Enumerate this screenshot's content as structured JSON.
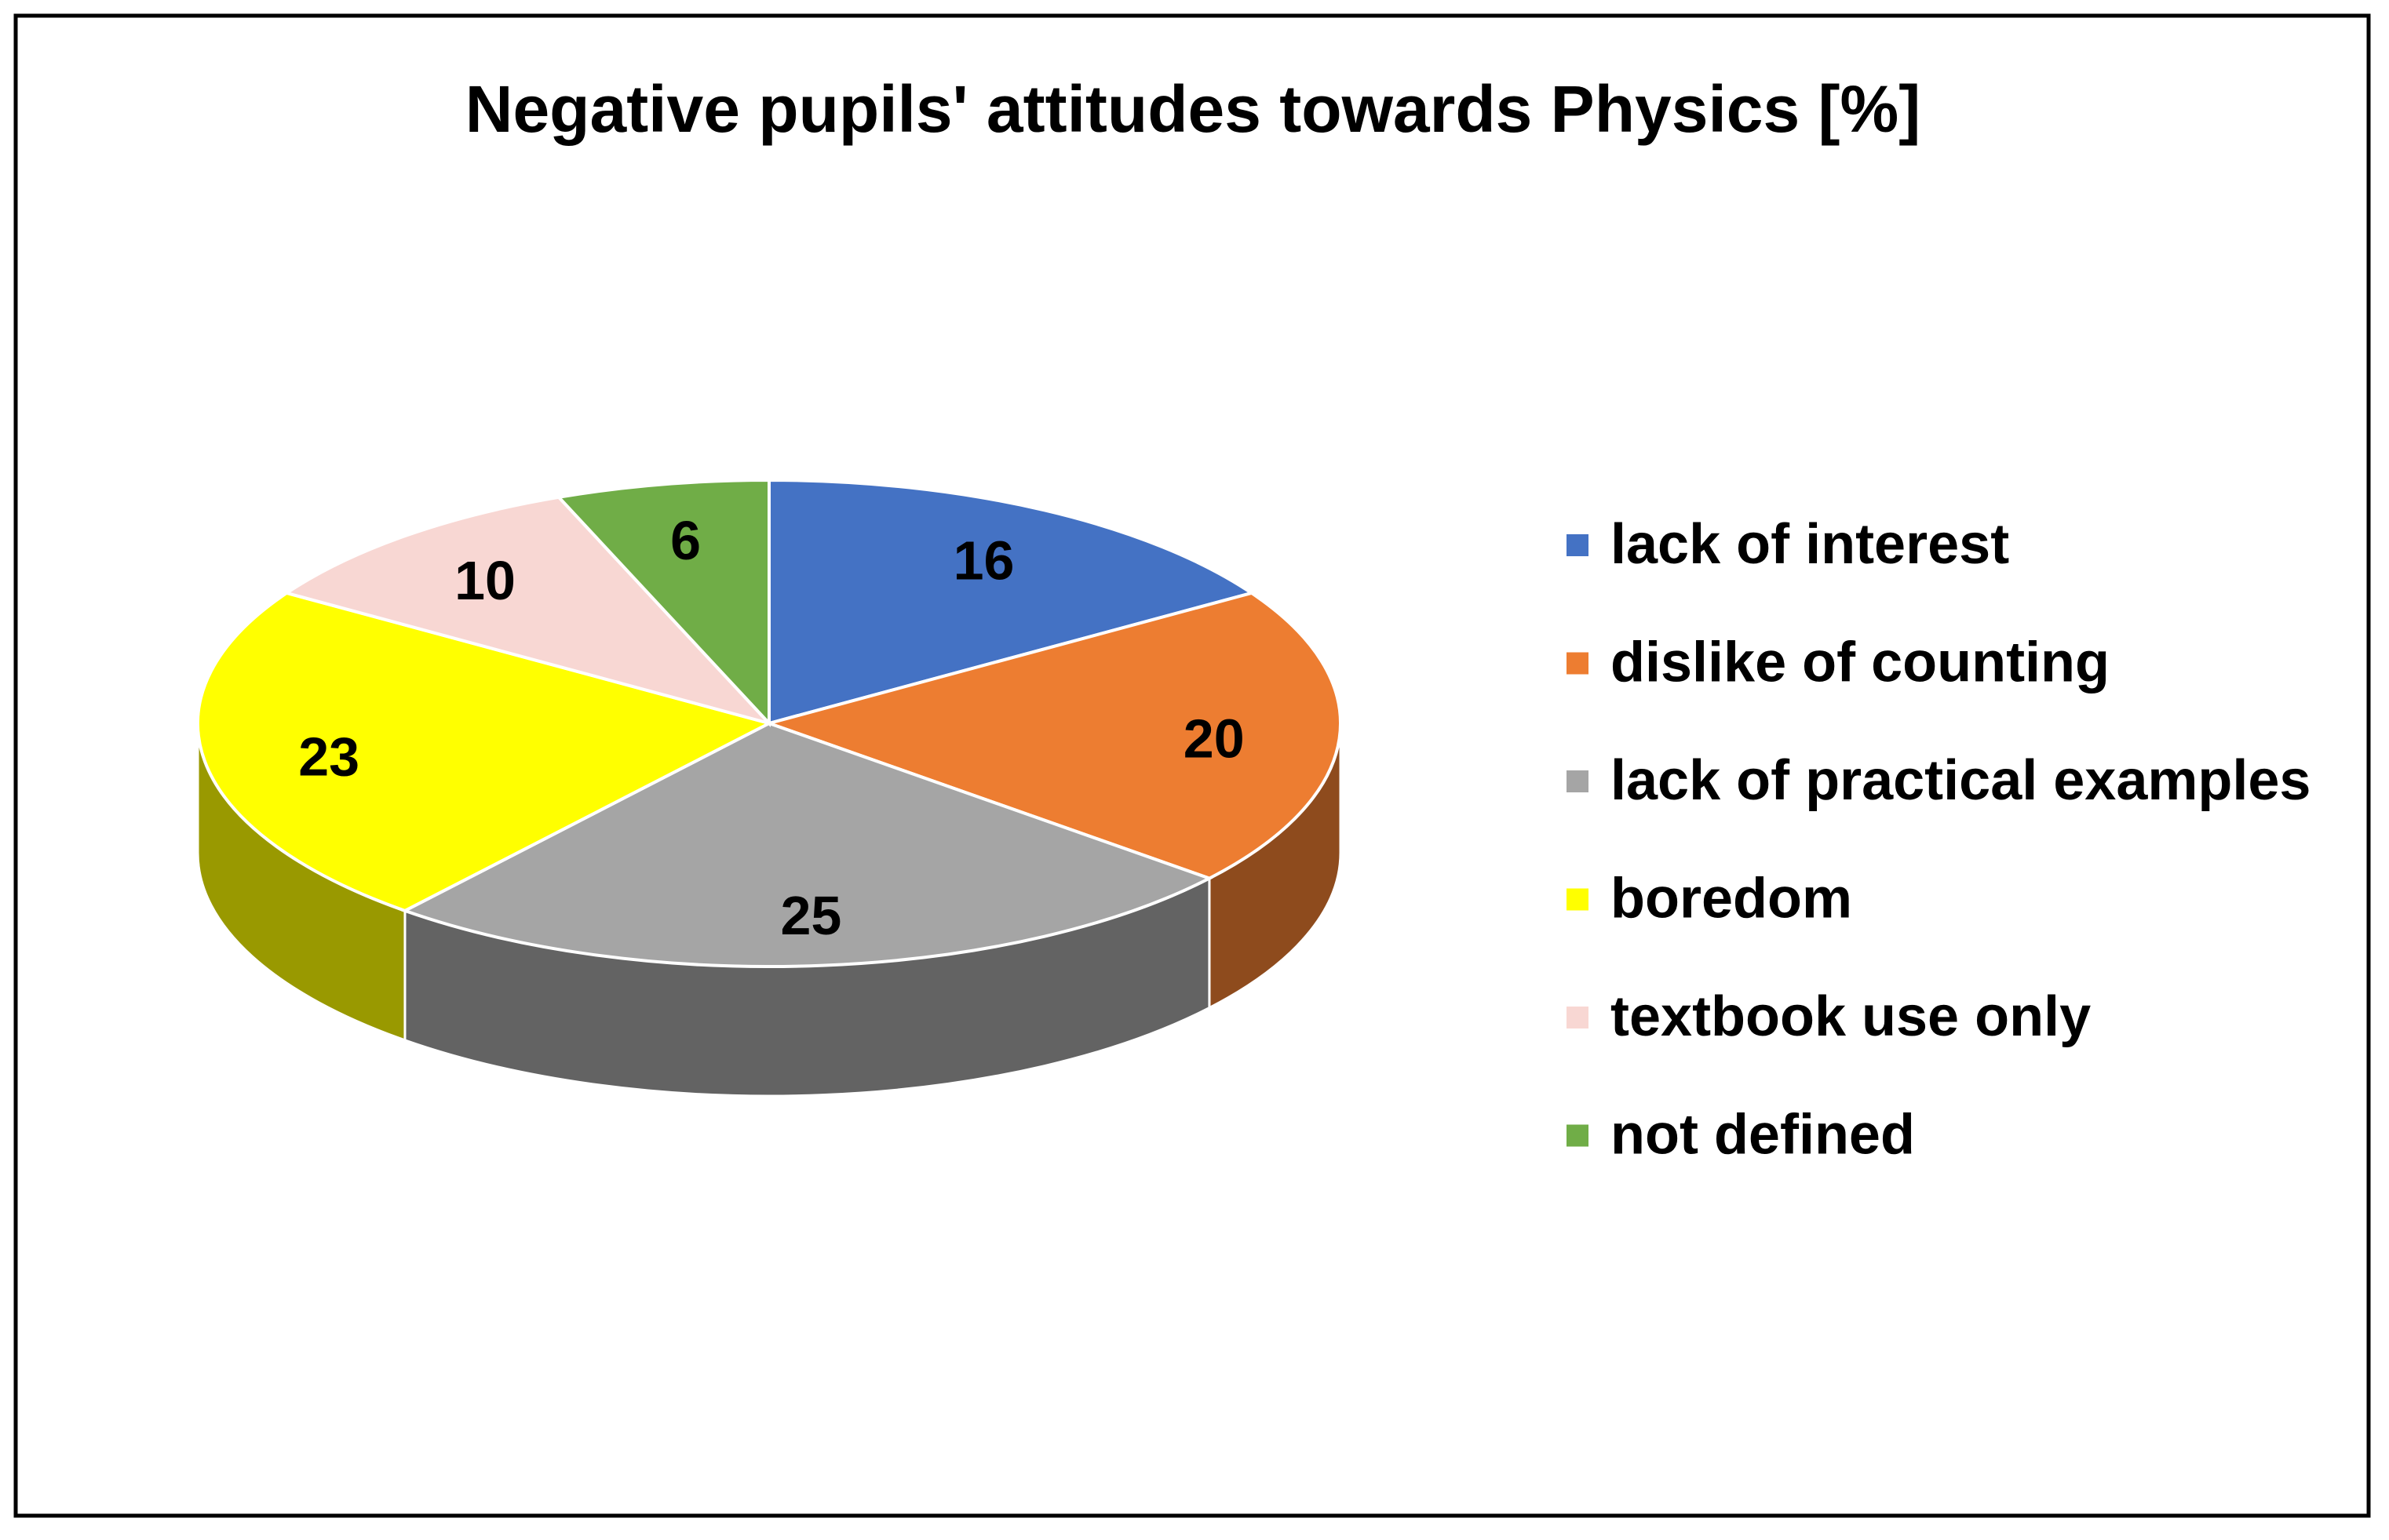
{
  "chart_data": {
    "type": "pie",
    "title": "Negative pupils' attitudes towards Physics [%]",
    "categories": [
      "lack of interest",
      "dislike of counting",
      "lack of practical examples",
      "boredom",
      "textbook use only",
      "not defined"
    ],
    "values": [
      16,
      20,
      25,
      23,
      10,
      6
    ],
    "colors": [
      "#4472c4",
      "#ed7d31",
      "#a5a5a5",
      "#ffff00",
      "#f8d7d3",
      "#70ad47"
    ],
    "legend": "right"
  }
}
